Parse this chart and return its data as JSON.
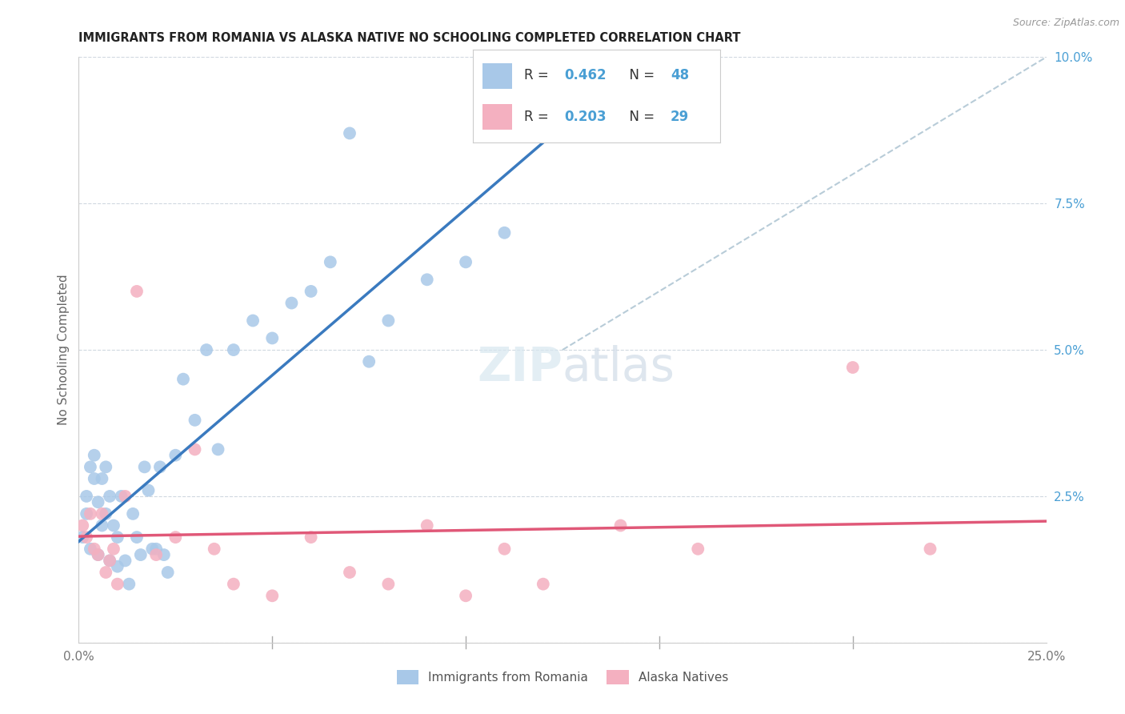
{
  "title": "IMMIGRANTS FROM ROMANIA VS ALASKA NATIVE NO SCHOOLING COMPLETED CORRELATION CHART",
  "source": "Source: ZipAtlas.com",
  "ylabel": "No Schooling Completed",
  "xlim": [
    0.0,
    0.25
  ],
  "ylim": [
    0.0,
    0.1
  ],
  "xtick_positions": [
    0.0,
    0.05,
    0.1,
    0.15,
    0.2,
    0.25
  ],
  "ytick_positions": [
    0.0,
    0.025,
    0.05,
    0.075,
    0.1
  ],
  "xtick_labels": [
    "0.0%",
    "",
    "",
    "",
    "",
    "25.0%"
  ],
  "ytick_labels": [
    "",
    "2.5%",
    "5.0%",
    "7.5%",
    "10.0%"
  ],
  "legend_bottom_labels": [
    "Immigrants from Romania",
    "Alaska Natives"
  ],
  "romania_R": 0.462,
  "romania_N": 48,
  "alaska_R": 0.203,
  "alaska_N": 29,
  "romania_color": "#a8c8e8",
  "alaska_color": "#f4b0c0",
  "romania_line_color": "#3a7abf",
  "alaska_line_color": "#e05878",
  "dashed_line_color": "#b8ccd8",
  "background_color": "#ffffff",
  "grid_color": "#d0d8e0",
  "romania_x": [
    0.001,
    0.002,
    0.002,
    0.003,
    0.003,
    0.004,
    0.004,
    0.005,
    0.005,
    0.006,
    0.006,
    0.007,
    0.007,
    0.008,
    0.008,
    0.009,
    0.01,
    0.01,
    0.011,
    0.012,
    0.013,
    0.014,
    0.015,
    0.016,
    0.017,
    0.018,
    0.019,
    0.02,
    0.021,
    0.022,
    0.023,
    0.025,
    0.027,
    0.03,
    0.033,
    0.036,
    0.04,
    0.045,
    0.05,
    0.055,
    0.06,
    0.065,
    0.07,
    0.075,
    0.08,
    0.09,
    0.1,
    0.11
  ],
  "romania_y": [
    0.018,
    0.025,
    0.022,
    0.03,
    0.016,
    0.028,
    0.032,
    0.024,
    0.015,
    0.028,
    0.02,
    0.03,
    0.022,
    0.025,
    0.014,
    0.02,
    0.018,
    0.013,
    0.025,
    0.014,
    0.01,
    0.022,
    0.018,
    0.015,
    0.03,
    0.026,
    0.016,
    0.016,
    0.03,
    0.015,
    0.012,
    0.032,
    0.045,
    0.038,
    0.05,
    0.033,
    0.05,
    0.055,
    0.052,
    0.058,
    0.06,
    0.065,
    0.087,
    0.048,
    0.055,
    0.062,
    0.065,
    0.07
  ],
  "alaska_x": [
    0.001,
    0.002,
    0.003,
    0.004,
    0.005,
    0.006,
    0.007,
    0.008,
    0.009,
    0.01,
    0.012,
    0.015,
    0.02,
    0.025,
    0.03,
    0.035,
    0.04,
    0.05,
    0.06,
    0.07,
    0.08,
    0.09,
    0.1,
    0.11,
    0.12,
    0.14,
    0.16,
    0.2,
    0.22
  ],
  "alaska_y": [
    0.02,
    0.018,
    0.022,
    0.016,
    0.015,
    0.022,
    0.012,
    0.014,
    0.016,
    0.01,
    0.025,
    0.06,
    0.015,
    0.018,
    0.033,
    0.016,
    0.01,
    0.008,
    0.018,
    0.012,
    0.01,
    0.02,
    0.008,
    0.016,
    0.01,
    0.02,
    0.016,
    0.047,
    0.016
  ]
}
